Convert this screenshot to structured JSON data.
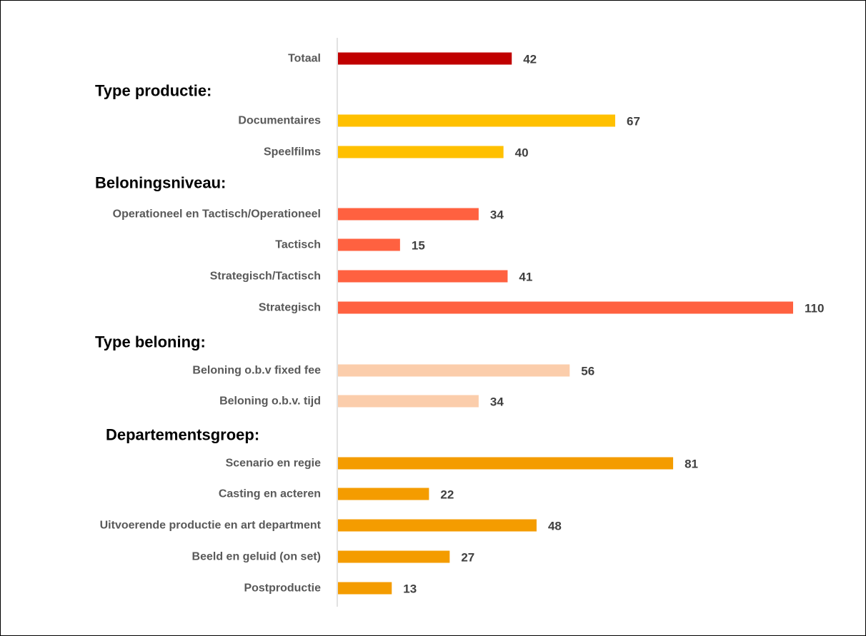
{
  "chart_data": {
    "type": "bar",
    "orientation": "horizontal",
    "title": "",
    "xlabel": "",
    "ylabel": "",
    "xlim": [
      0,
      110
    ],
    "grid": false,
    "legend": "none",
    "rows": [
      {
        "kind": "bar",
        "label": "Totaal",
        "value": 42,
        "color": "#C00000"
      },
      {
        "kind": "header",
        "label": "Type productie:"
      },
      {
        "kind": "bar",
        "label": "Documentaires",
        "value": 67,
        "color": "#FFC000"
      },
      {
        "kind": "bar",
        "label": "Speelfilms",
        "value": 40,
        "color": "#FFC000"
      },
      {
        "kind": "header",
        "label": "Beloningsniveau:"
      },
      {
        "kind": "bar",
        "label": "Operationeel en Tactisch/Operationeel",
        "value": 34,
        "color": "#FF6140"
      },
      {
        "kind": "bar",
        "label": "Tactisch",
        "value": 15,
        "color": "#FF6140"
      },
      {
        "kind": "bar",
        "label": "Strategisch/Tactisch",
        "value": 41,
        "color": "#FF6140"
      },
      {
        "kind": "bar",
        "label": "Strategisch",
        "value": 110,
        "color": "#FF6140"
      },
      {
        "kind": "header",
        "label": "Type beloning:"
      },
      {
        "kind": "bar",
        "label": "Beloning o.b.v fixed fee",
        "value": 56,
        "color": "#FBCDAB"
      },
      {
        "kind": "bar",
        "label": "Beloning o.b.v. tijd",
        "value": 34,
        "color": "#FBCDAB"
      },
      {
        "kind": "header",
        "label": "Departementsgroep:"
      },
      {
        "kind": "bar",
        "label": "Scenario en regie",
        "value": 81,
        "color": "#F49C00"
      },
      {
        "kind": "bar",
        "label": "Casting en acteren",
        "value": 22,
        "color": "#F49C00"
      },
      {
        "kind": "bar",
        "label": "Uitvoerende productie en art department",
        "value": 48,
        "color": "#F49C00"
      },
      {
        "kind": "bar",
        "label": "Beeld en geluid (on set)",
        "value": 27,
        "color": "#F49C00"
      },
      {
        "kind": "bar",
        "label": "Postproductie",
        "value": 13,
        "color": "#F49C00"
      }
    ]
  }
}
